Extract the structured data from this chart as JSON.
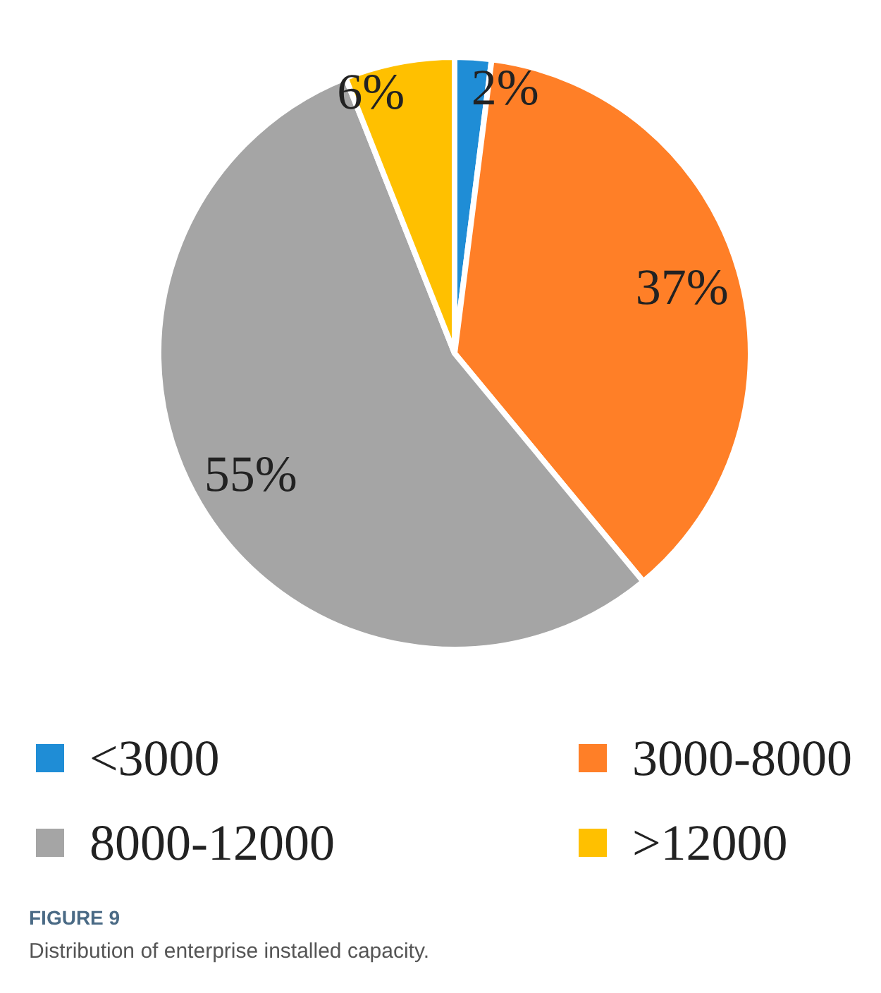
{
  "chart_data": {
    "type": "pie",
    "categories": [
      "<3000",
      "3000-8000",
      "8000-12000",
      ">12000"
    ],
    "values": [
      2,
      37,
      55,
      6
    ],
    "colors": [
      "#1f8dd6",
      "#ff7f27",
      "#a5a5a5",
      "#ffc000"
    ],
    "value_labels": [
      "2%",
      "37%",
      "55%",
      "6%"
    ],
    "legend": "bottom",
    "annotations": [
      "FIGURE 9",
      "Distribution of enterprise installed capacity."
    ]
  }
}
